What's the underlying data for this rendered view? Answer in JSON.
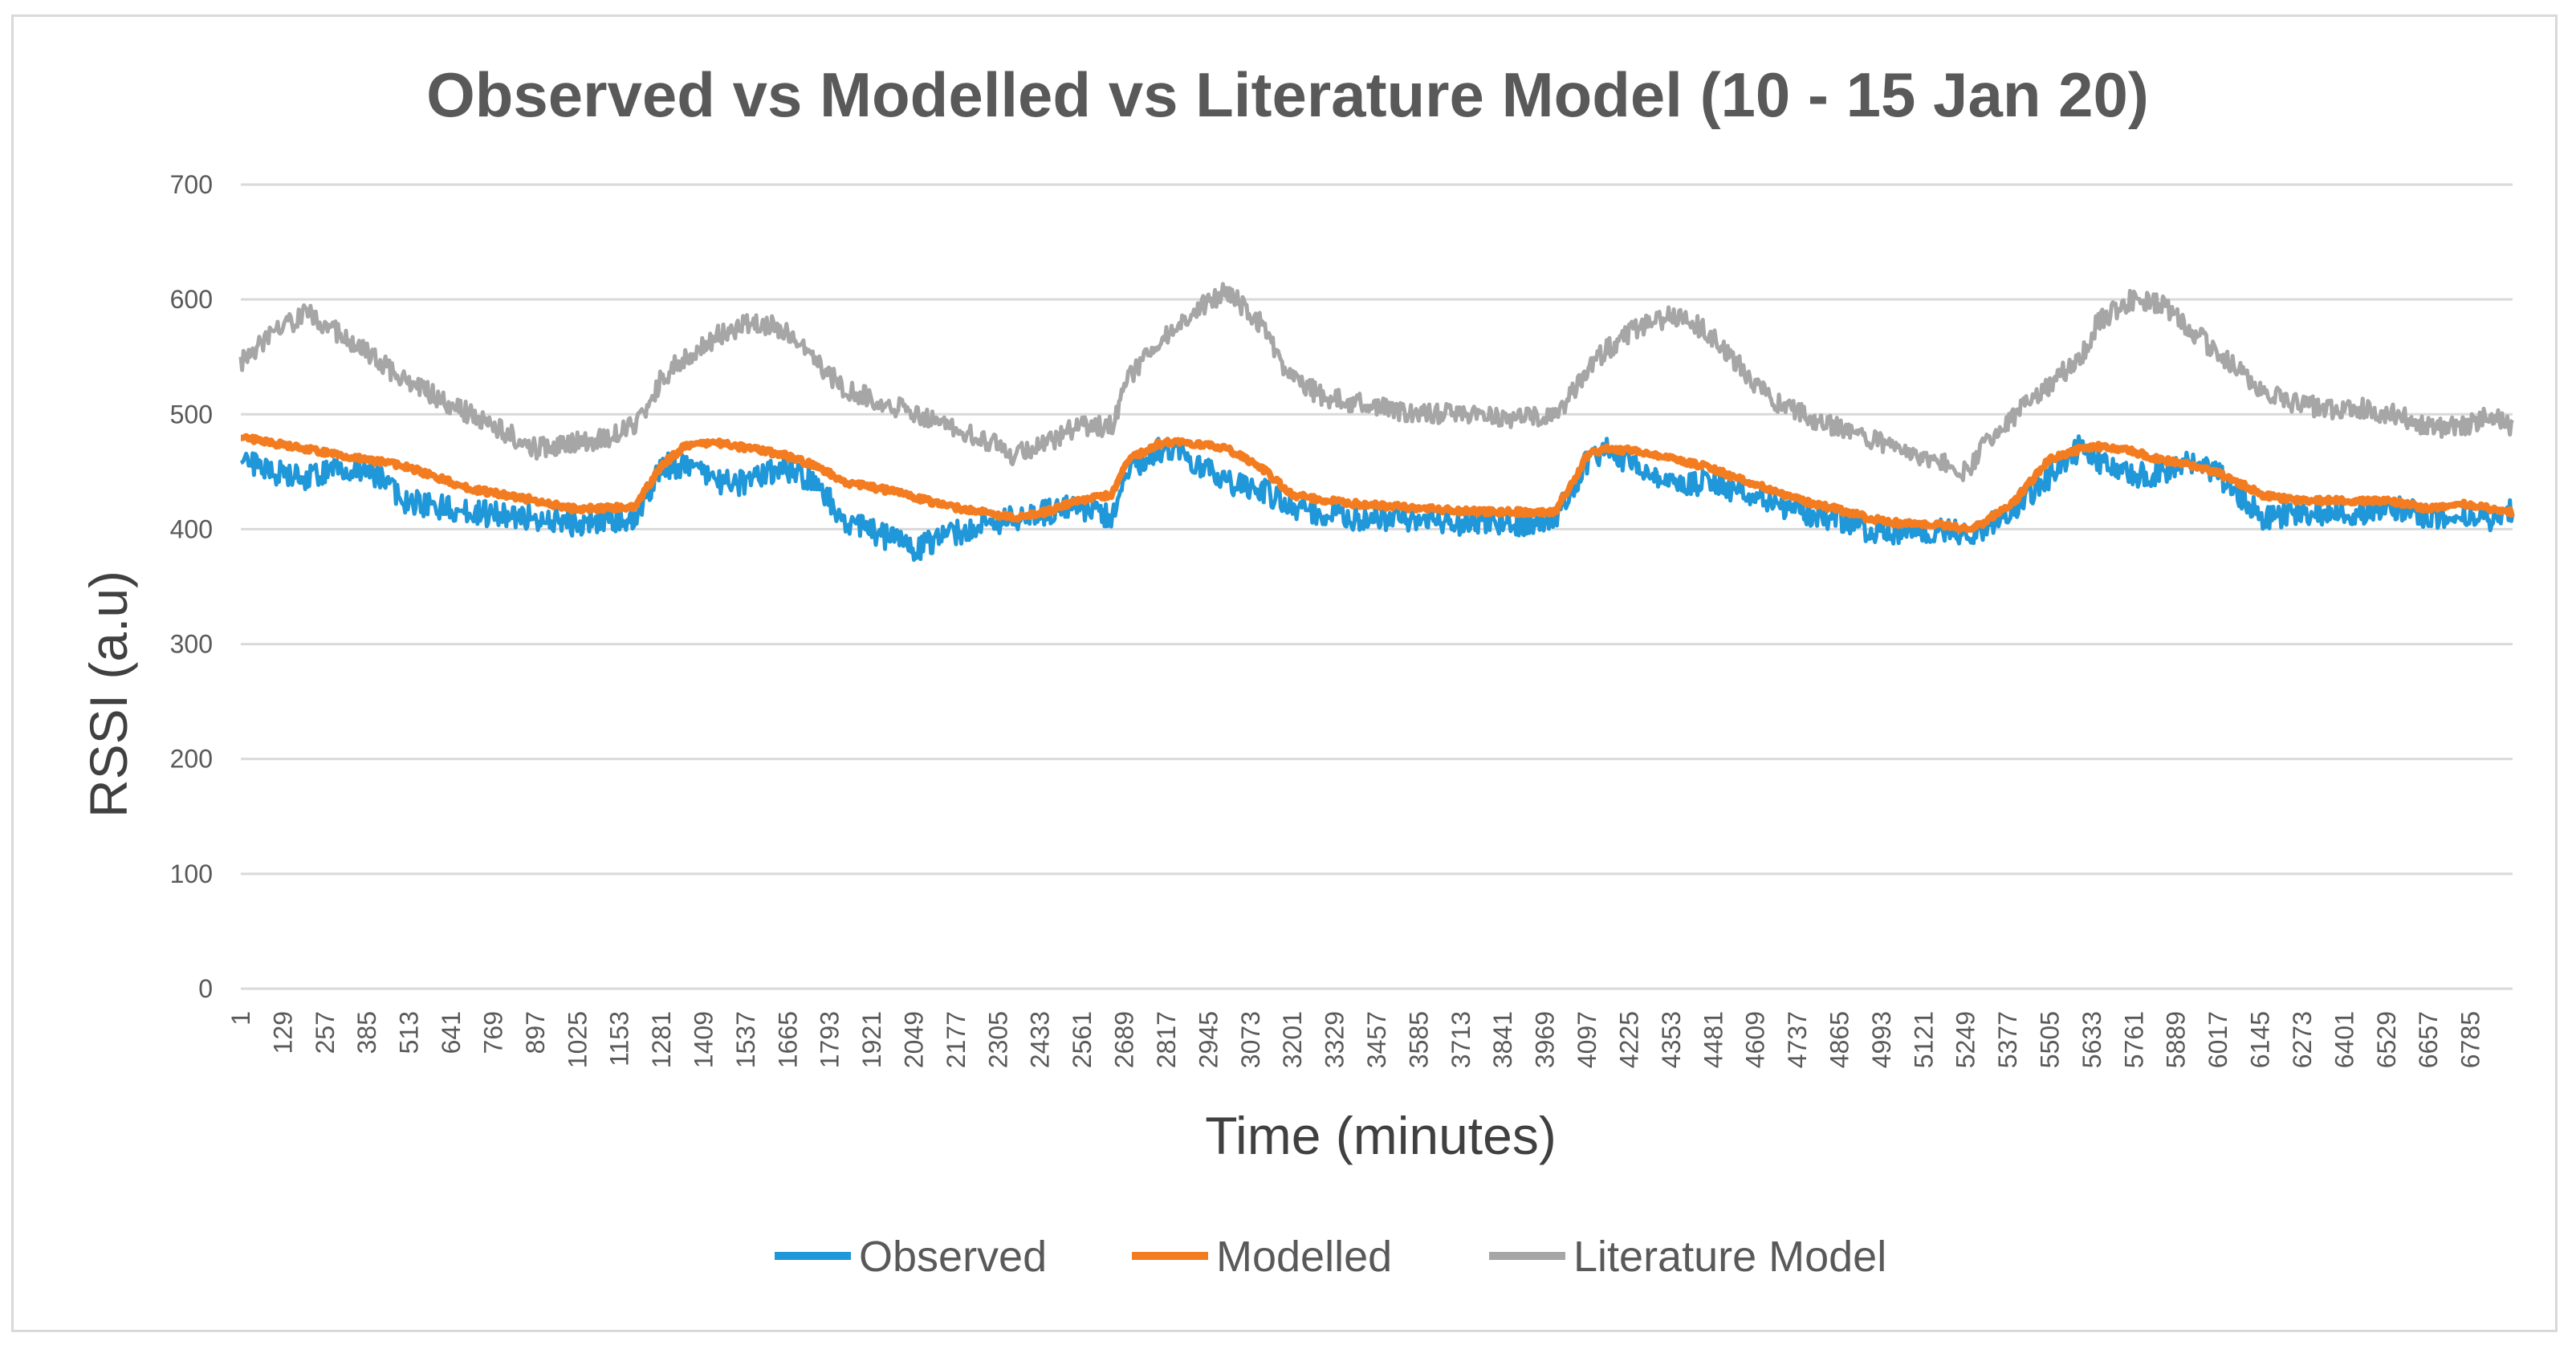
{
  "chart_data": {
    "type": "line",
    "title": "Observed vs Modelled vs Literature Model (10 - 15 Jan 20)",
    "xlabel": "Time (minutes)",
    "ylabel": "RSSI (a.u)",
    "ylim": [
      0,
      700
    ],
    "yticks": [
      0,
      100,
      200,
      300,
      400,
      500,
      600,
      700
    ],
    "xlim": [
      1,
      6913
    ],
    "xticks": [
      1,
      129,
      257,
      385,
      513,
      641,
      769,
      897,
      1025,
      1153,
      1281,
      1409,
      1537,
      1665,
      1793,
      1921,
      2049,
      2177,
      2305,
      2433,
      2561,
      2689,
      2817,
      2945,
      3073,
      3201,
      3329,
      3457,
      3585,
      3713,
      3841,
      3969,
      4097,
      4225,
      4353,
      4481,
      4609,
      4737,
      4865,
      4993,
      5121,
      5249,
      5377,
      5505,
      5633,
      5761,
      5889,
      6017,
      6145,
      6273,
      6401,
      6529,
      6657,
      6785
    ],
    "grid": true,
    "legend": "bottom",
    "series": [
      {
        "name": "Observed",
        "color": "#1f97d8",
        "x": [
          1,
          100,
          200,
          300,
          400,
          500,
          600,
          700,
          800,
          900,
          1000,
          1100,
          1200,
          1280,
          1350,
          1450,
          1550,
          1650,
          1750,
          1850,
          1950,
          2050,
          2150,
          2250,
          2350,
          2450,
          2550,
          2650,
          2700,
          2800,
          2900,
          3000,
          3100,
          3200,
          3300,
          3400,
          3500,
          3600,
          3700,
          3800,
          3900,
          4000,
          4100,
          4150,
          4250,
          4350,
          4450,
          4550,
          4650,
          4750,
          4850,
          4950,
          5050,
          5150,
          5250,
          5300,
          5400,
          5500,
          5600,
          5650,
          5750,
          5850,
          5950,
          6050,
          6150,
          6250,
          6350,
          6450,
          6550,
          6650,
          6750,
          6850,
          6913
        ],
        "values": [
          460,
          450,
          445,
          455,
          450,
          425,
          420,
          415,
          412,
          410,
          405,
          408,
          410,
          455,
          455,
          440,
          440,
          455,
          440,
          405,
          395,
          382,
          395,
          400,
          410,
          415,
          420,
          410,
          450,
          470,
          460,
          440,
          435,
          420,
          412,
          410,
          410,
          408,
          405,
          407,
          405,
          410,
          460,
          470,
          455,
          440,
          440,
          435,
          425,
          415,
          410,
          400,
          398,
          400,
          395,
          400,
          420,
          445,
          472,
          460,
          445,
          450,
          460,
          440,
          410,
          412,
          415,
          415,
          418,
          412,
          410,
          410,
          418
        ]
      },
      {
        "name": "Modelled",
        "color": "#f47c20",
        "x": [
          1,
          100,
          200,
          300,
          400,
          500,
          600,
          700,
          800,
          900,
          1000,
          1100,
          1200,
          1280,
          1350,
          1450,
          1550,
          1650,
          1750,
          1850,
          1950,
          2050,
          2150,
          2250,
          2350,
          2450,
          2550,
          2650,
          2700,
          2800,
          2900,
          3000,
          3100,
          3200,
          3300,
          3400,
          3500,
          3600,
          3700,
          3800,
          3900,
          4000,
          4100,
          4150,
          4250,
          4350,
          4450,
          4550,
          4650,
          4750,
          4850,
          4950,
          5050,
          5150,
          5250,
          5300,
          5400,
          5500,
          5600,
          5650,
          5750,
          5850,
          5950,
          6050,
          6150,
          6250,
          6350,
          6450,
          6550,
          6650,
          6750,
          6850,
          6913
        ],
        "values": [
          480,
          475,
          470,
          465,
          460,
          455,
          445,
          435,
          430,
          425,
          418,
          418,
          420,
          455,
          472,
          475,
          470,
          465,
          455,
          440,
          435,
          428,
          420,
          415,
          410,
          415,
          425,
          430,
          460,
          475,
          475,
          470,
          455,
          430,
          425,
          422,
          420,
          418,
          416,
          415,
          415,
          415,
          465,
          470,
          468,
          462,
          455,
          445,
          435,
          425,
          418,
          410,
          405,
          405,
          400,
          405,
          425,
          460,
          470,
          472,
          468,
          460,
          455,
          445,
          430,
          425,
          425,
          425,
          424,
          418,
          422,
          418,
          415
        ]
      },
      {
        "name": "Literature Model",
        "color": "#a6a6a6",
        "x": [
          1,
          100,
          200,
          300,
          400,
          500,
          600,
          700,
          800,
          900,
          1000,
          1100,
          1200,
          1280,
          1350,
          1450,
          1550,
          1650,
          1750,
          1850,
          1950,
          2050,
          2150,
          2250,
          2350,
          2450,
          2550,
          2650,
          2700,
          2800,
          2900,
          3000,
          3100,
          3200,
          3300,
          3400,
          3500,
          3600,
          3700,
          3800,
          3900,
          4000,
          4100,
          4150,
          4250,
          4350,
          4450,
          4550,
          4650,
          4750,
          4850,
          4950,
          5050,
          5150,
          5250,
          5300,
          5400,
          5500,
          5600,
          5650,
          5750,
          5850,
          5950,
          6050,
          6150,
          6250,
          6350,
          6450,
          6550,
          6650,
          6750,
          6850,
          6913
        ],
        "values": [
          545,
          570,
          588,
          570,
          550,
          530,
          515,
          500,
          485,
          470,
          475,
          478,
          490,
          530,
          550,
          568,
          580,
          575,
          545,
          520,
          512,
          500,
          490,
          480,
          465,
          475,
          490,
          490,
          530,
          565,
          590,
          608,
          580,
          530,
          515,
          510,
          505,
          500,
          502,
          500,
          496,
          498,
          540,
          555,
          575,
          585,
          575,
          545,
          515,
          500,
          490,
          480,
          470,
          460,
          450,
          470,
          500,
          525,
          550,
          580,
          600,
          595,
          570,
          545,
          520,
          510,
          505,
          505,
          500,
          490,
          488,
          500,
          490
        ]
      }
    ]
  }
}
